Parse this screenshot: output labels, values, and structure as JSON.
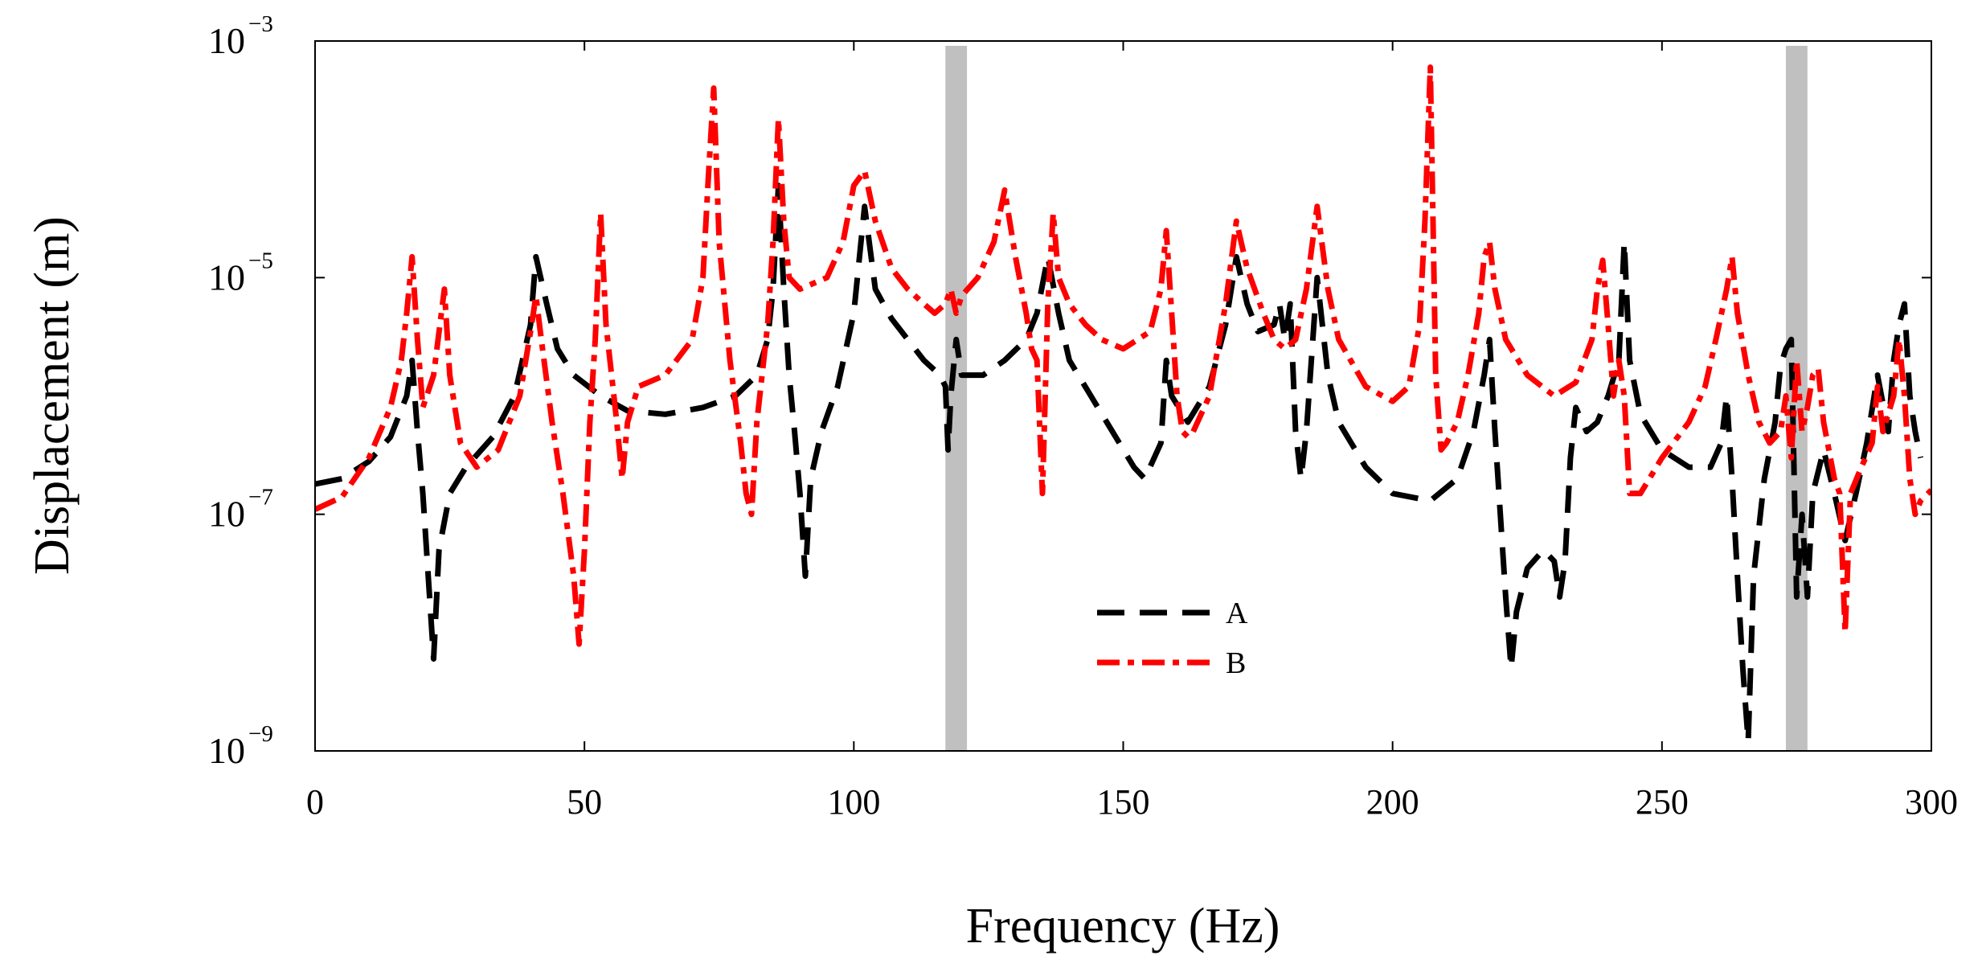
{
  "chart_data": {
    "type": "line",
    "title": "",
    "xlabel": "Frequency (Hz)",
    "ylabel": "Displacement (m)",
    "xlim": [
      0,
      300
    ],
    "ylim": [
      1e-09,
      0.001
    ],
    "yscale": "log",
    "grid": false,
    "legend_position": "bottom-center",
    "x_ticks": [
      {
        "value": 0,
        "label": "0"
      },
      {
        "value": 50,
        "label": "50"
      },
      {
        "value": 100,
        "label": "100"
      },
      {
        "value": 150,
        "label": "150"
      },
      {
        "value": 200,
        "label": "200"
      },
      {
        "value": 250,
        "label": "250"
      },
      {
        "value": 300,
        "label": "300"
      }
    ],
    "y_ticks": [
      {
        "value": 1e-09,
        "base": "10",
        "exp": "−9"
      },
      {
        "value": 1e-07,
        "base": "10",
        "exp": "−7"
      },
      {
        "value": 1e-05,
        "base": "10",
        "exp": "−5"
      },
      {
        "value": 0.001,
        "base": "10",
        "exp": "−3"
      }
    ],
    "highlight_bands": [
      {
        "x0": 117,
        "x1": 121,
        "color": "#c0c0c0"
      },
      {
        "x0": 273,
        "x1": 277,
        "color": "#c0c0c0"
      }
    ],
    "series": [
      {
        "name": "A",
        "color": "#000000",
        "dash": "dashed",
        "points": [
          [
            0,
            1.8e-07
          ],
          [
            5,
            2e-07
          ],
          [
            10,
            2.8e-07
          ],
          [
            14,
            4.5e-07
          ],
          [
            17,
            1e-06
          ],
          [
            18,
            2e-06
          ],
          [
            19,
            5e-07
          ],
          [
            20,
            1.5e-07
          ],
          [
            21,
            3e-08
          ],
          [
            22,
            6e-09
          ],
          [
            23,
            5e-08
          ],
          [
            25,
            1.5e-07
          ],
          [
            28,
            2.5e-07
          ],
          [
            33,
            4.5e-07
          ],
          [
            37,
            1e-06
          ],
          [
            40,
            4e-06
          ],
          [
            41,
            1.5e-05
          ],
          [
            43,
            6e-06
          ],
          [
            45,
            2.5e-06
          ],
          [
            48,
            1.5e-06
          ],
          [
            53,
            1e-06
          ],
          [
            58,
            7.5e-07
          ],
          [
            65,
            7e-07
          ],
          [
            72,
            8e-07
          ],
          [
            78,
            1e-06
          ],
          [
            82,
            1.5e-06
          ],
          [
            84,
            3e-06
          ],
          [
            85,
            8e-06
          ],
          [
            86,
            6e-05
          ],
          [
            87,
            8e-06
          ],
          [
            88,
            1.5e-06
          ],
          [
            89,
            5e-07
          ],
          [
            90,
            1.5e-07
          ],
          [
            91,
            3e-08
          ],
          [
            92,
            2e-07
          ],
          [
            94,
            5e-07
          ],
          [
            97,
            1.2e-06
          ],
          [
            100,
            5e-06
          ],
          [
            102,
            4e-05
          ],
          [
            104,
            8e-06
          ],
          [
            107,
            4.5e-06
          ],
          [
            110,
            3e-06
          ],
          [
            113,
            2e-06
          ],
          [
            116,
            1.5e-06
          ],
          [
            117,
            1.2e-06
          ],
          [
            117.5,
            3.5e-07
          ],
          [
            118,
            1e-06
          ],
          [
            119,
            3e-06
          ],
          [
            120,
            1.5e-06
          ],
          [
            124,
            1.5e-06
          ],
          [
            128,
            2e-06
          ],
          [
            132,
            3e-06
          ],
          [
            134,
            5e-06
          ],
          [
            136,
            1.5e-05
          ],
          [
            138,
            5e-06
          ],
          [
            140,
            2e-06
          ],
          [
            144,
            1e-06
          ],
          [
            148,
            5e-07
          ],
          [
            152,
            2.5e-07
          ],
          [
            154,
            2e-07
          ],
          [
            157,
            4e-07
          ],
          [
            158,
            2e-06
          ],
          [
            159,
            1e-06
          ],
          [
            162,
            6e-07
          ],
          [
            166,
            1.2e-06
          ],
          [
            169,
            4e-06
          ],
          [
            171,
            1.5e-05
          ],
          [
            173,
            6e-06
          ],
          [
            175,
            3.5e-06
          ],
          [
            178,
            4e-06
          ],
          [
            179,
            6e-06
          ],
          [
            180,
            3e-06
          ],
          [
            181,
            6e-06
          ],
          [
            182,
            5e-07
          ],
          [
            183,
            2e-07
          ],
          [
            184,
            5e-07
          ],
          [
            186,
            1e-05
          ],
          [
            188,
            1.5e-06
          ],
          [
            190,
            6e-07
          ],
          [
            195,
            2.5e-07
          ],
          [
            200,
            1.5e-07
          ],
          [
            207,
            1.3e-07
          ],
          [
            212,
            2e-07
          ],
          [
            215,
            5e-07
          ],
          [
            217,
            1.5e-06
          ],
          [
            218,
            3e-06
          ],
          [
            219,
            5e-07
          ],
          [
            220,
            1e-07
          ],
          [
            221,
            2e-08
          ],
          [
            222,
            5e-09
          ],
          [
            223,
            1.5e-08
          ],
          [
            225,
            3.5e-08
          ],
          [
            228,
            5e-08
          ],
          [
            230,
            4e-08
          ],
          [
            231,
            2e-08
          ],
          [
            232,
            4e-08
          ],
          [
            233,
            3e-07
          ],
          [
            234,
            8e-07
          ],
          [
            236,
            5e-07
          ],
          [
            238,
            6e-07
          ],
          [
            240,
            1e-06
          ],
          [
            242,
            2e-06
          ],
          [
            243,
            2e-05
          ],
          [
            244,
            2e-06
          ],
          [
            246,
            7e-07
          ],
          [
            250,
            3.5e-07
          ],
          [
            255,
            2.5e-07
          ],
          [
            259,
            2.5e-07
          ],
          [
            261,
            4e-07
          ],
          [
            262,
            1e-06
          ],
          [
            263,
            2e-07
          ],
          [
            264,
            3e-08
          ],
          [
            265,
            5e-09
          ],
          [
            266,
            1.2e-09
          ],
          [
            267,
            3e-08
          ],
          [
            269,
            2e-07
          ],
          [
            271,
            6e-07
          ],
          [
            272,
            1.8e-06
          ],
          [
            273,
            2.5e-06
          ],
          [
            274,
            3e-06
          ],
          [
            275,
            2e-08
          ],
          [
            276,
            1e-07
          ],
          [
            277,
            2e-08
          ],
          [
            278,
            1.5e-07
          ],
          [
            280,
            3.5e-07
          ],
          [
            282,
            1.5e-07
          ],
          [
            284,
            6e-08
          ],
          [
            286,
            1.5e-07
          ],
          [
            288,
            4e-07
          ],
          [
            290,
            1.5e-06
          ],
          [
            292,
            5e-07
          ],
          [
            293,
            2e-06
          ],
          [
            294,
            4e-06
          ],
          [
            295,
            6e-06
          ],
          [
            296,
            1e-06
          ],
          [
            297,
            5e-07
          ],
          [
            298,
            3e-07
          ]
        ]
      },
      {
        "name": "B",
        "color": "#ff0000",
        "dash": "dashdot",
        "points": [
          [
            0,
            1.1e-07
          ],
          [
            5,
            1.4e-07
          ],
          [
            10,
            3e-07
          ],
          [
            14,
            8e-07
          ],
          [
            16,
            2e-06
          ],
          [
            17,
            5e-06
          ],
          [
            18,
            1.5e-05
          ],
          [
            19,
            3e-06
          ],
          [
            20,
            8e-07
          ],
          [
            22,
            1.5e-06
          ],
          [
            24,
            8e-06
          ],
          [
            25,
            1.5e-06
          ],
          [
            27,
            4e-07
          ],
          [
            30,
            2.5e-07
          ],
          [
            34,
            3.5e-07
          ],
          [
            38,
            1e-06
          ],
          [
            40,
            3.5e-06
          ],
          [
            41,
            7e-06
          ],
          [
            42,
            3e-06
          ],
          [
            44,
            6e-07
          ],
          [
            46,
            1.5e-07
          ],
          [
            48,
            3e-08
          ],
          [
            49,
            8e-09
          ],
          [
            50,
            5e-08
          ],
          [
            51,
            6e-07
          ],
          [
            52,
            3e-06
          ],
          [
            53,
            3.5e-05
          ],
          [
            54,
            4e-06
          ],
          [
            56,
            6e-07
          ],
          [
            57,
            2e-07
          ],
          [
            58,
            6e-07
          ],
          [
            60,
            1.2e-06
          ],
          [
            65,
            1.5e-06
          ],
          [
            70,
            3e-06
          ],
          [
            72,
            1e-05
          ],
          [
            73,
            7e-05
          ],
          [
            74,
            0.0004
          ],
          [
            75,
            2e-05
          ],
          [
            77,
            2e-06
          ],
          [
            79,
            4e-07
          ],
          [
            80,
            1.5e-07
          ],
          [
            81,
            1e-07
          ],
          [
            82,
            6e-07
          ],
          [
            84,
            4e-06
          ],
          [
            85,
            2e-05
          ],
          [
            86,
            0.00022
          ],
          [
            87,
            3e-05
          ],
          [
            88,
            1e-05
          ],
          [
            90,
            8e-06
          ],
          [
            95,
            1e-05
          ],
          [
            98,
            2e-05
          ],
          [
            100,
            6e-05
          ],
          [
            102,
            8e-05
          ],
          [
            104,
            3e-05
          ],
          [
            107,
            1.2e-05
          ],
          [
            110,
            8e-06
          ],
          [
            113,
            6e-06
          ],
          [
            115,
            5e-06
          ],
          [
            117,
            6e-06
          ],
          [
            118,
            8e-06
          ],
          [
            119,
            5e-06
          ],
          [
            120,
            7e-06
          ],
          [
            123,
            1e-05
          ],
          [
            126,
            2e-05
          ],
          [
            128,
            5.5e-05
          ],
          [
            130,
            1.5e-05
          ],
          [
            132,
            5e-06
          ],
          [
            133,
            2.5e-06
          ],
          [
            134,
            2e-06
          ],
          [
            135,
            1.5e-07
          ],
          [
            136,
            6e-06
          ],
          [
            137,
            3.5e-05
          ],
          [
            138,
            1e-05
          ],
          [
            140,
            6e-06
          ],
          [
            143,
            4e-06
          ],
          [
            146,
            3e-06
          ],
          [
            150,
            2.5e-06
          ],
          [
            155,
            3.5e-06
          ],
          [
            157,
            8e-06
          ],
          [
            158,
            2.5e-05
          ],
          [
            159,
            5e-06
          ],
          [
            160,
            1e-06
          ],
          [
            161,
            5e-07
          ],
          [
            162,
            4.5e-07
          ],
          [
            163,
            5e-07
          ],
          [
            166,
            1e-06
          ],
          [
            169,
            6e-06
          ],
          [
            171,
            3e-05
          ],
          [
            173,
            1.2e-05
          ],
          [
            176,
            5e-06
          ],
          [
            178,
            3e-06
          ],
          [
            180,
            2.5e-06
          ],
          [
            182,
            3e-06
          ],
          [
            184,
            8e-06
          ],
          [
            186,
            4e-05
          ],
          [
            188,
            8e-06
          ],
          [
            190,
            3e-06
          ],
          [
            195,
            1.2e-06
          ],
          [
            200,
            9e-07
          ],
          [
            203,
            1.2e-06
          ],
          [
            205,
            4e-06
          ],
          [
            206,
            3e-05
          ],
          [
            207,
            0.0006
          ],
          [
            208,
            1.5e-06
          ],
          [
            209,
            3.5e-07
          ],
          [
            210,
            4e-07
          ],
          [
            212,
            6e-07
          ],
          [
            214,
            1.5e-06
          ],
          [
            216,
            5e-06
          ],
          [
            217,
            1.5e-05
          ],
          [
            218,
            2e-05
          ],
          [
            219,
            8e-06
          ],
          [
            221,
            3e-06
          ],
          [
            225,
            1.5e-06
          ],
          [
            230,
            1e-06
          ],
          [
            234,
            1.3e-06
          ],
          [
            237,
            3e-06
          ],
          [
            238,
            8e-06
          ],
          [
            239,
            1.4e-05
          ],
          [
            240,
            4e-06
          ],
          [
            241,
            1e-06
          ],
          [
            242,
            2e-06
          ],
          [
            243,
            1e-06
          ],
          [
            244,
            1.5e-07
          ],
          [
            246,
            1.5e-07
          ],
          [
            250,
            3e-07
          ],
          [
            255,
            6e-07
          ],
          [
            258,
            1.2e-06
          ],
          [
            260,
            3e-06
          ],
          [
            262,
            8e-06
          ],
          [
            263,
            1.5e-05
          ],
          [
            264,
            5e-06
          ],
          [
            266,
            1.5e-06
          ],
          [
            268,
            6e-07
          ],
          [
            270,
            4e-07
          ],
          [
            272,
            5e-07
          ],
          [
            273,
            1e-06
          ],
          [
            274,
            3e-07
          ],
          [
            275,
            2e-06
          ],
          [
            276,
            5e-07
          ],
          [
            277,
            8e-07
          ],
          [
            278,
            1.5e-06
          ],
          [
            279,
            1.7e-06
          ],
          [
            280,
            6e-07
          ],
          [
            282,
            2e-07
          ],
          [
            283,
            1.5e-07
          ],
          [
            284,
            1e-08
          ],
          [
            285,
            1.5e-07
          ],
          [
            287,
            2.5e-07
          ],
          [
            289,
            4e-07
          ],
          [
            290,
            1.2e-06
          ],
          [
            291,
            5e-07
          ],
          [
            293,
            1e-06
          ],
          [
            294,
            3e-06
          ],
          [
            295,
            1e-06
          ],
          [
            296,
            2e-07
          ],
          [
            297,
            1e-07
          ],
          [
            298,
            1.3e-07
          ],
          [
            300,
            1.6e-07
          ]
        ]
      }
    ]
  }
}
